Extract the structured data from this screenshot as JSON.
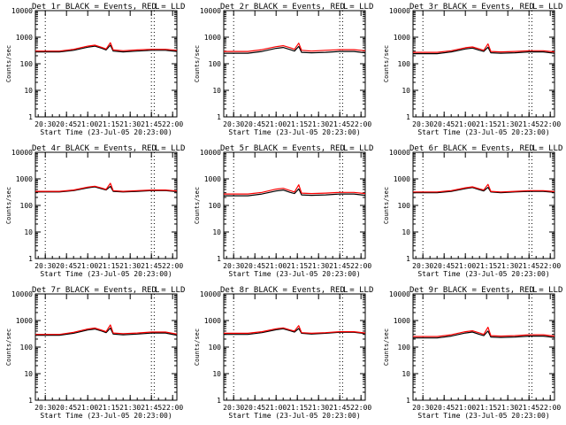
{
  "chart_data": [
    {
      "type": "line",
      "title": "Det 1r BLACK = Events, RED = LLD",
      "xlabel": "Start Time (23-Jul-05 20:23:00)",
      "ylabel": "Counts/sec",
      "marker": "L",
      "yscale": "log",
      "ylim": [
        1,
        10000
      ],
      "x_tick_labels": [
        "20:30",
        "20:45",
        "21:00",
        "21:15",
        "21:30",
        "21:45",
        "22:00"
      ],
      "y_tick_labels": [
        "1",
        "10",
        "100",
        "1000",
        "10000"
      ],
      "series": [
        {
          "color": "#000000",
          "x": [
            "20:23",
            "20:30",
            "20:40",
            "20:50",
            "21:00",
            "21:05",
            "21:10",
            "21:13",
            "21:16",
            "21:18",
            "21:25",
            "21:35",
            "21:45",
            "21:55",
            "22:03"
          ],
          "values": [
            280,
            280,
            280,
            320,
            420,
            460,
            380,
            330,
            500,
            300,
            280,
            300,
            320,
            320,
            290
          ]
        },
        {
          "color": "#ff0000",
          "x": [
            "20:23",
            "20:30",
            "20:40",
            "20:50",
            "21:00",
            "21:05",
            "21:10",
            "21:13",
            "21:16",
            "21:18",
            "21:25",
            "21:35",
            "21:45",
            "21:55",
            "22:03"
          ],
          "values": [
            300,
            300,
            300,
            350,
            460,
            500,
            410,
            360,
            620,
            330,
            310,
            330,
            350,
            350,
            320
          ]
        }
      ]
    },
    {
      "type": "line",
      "title": "Det 2r BLACK = Events, RED = LLD",
      "xlabel": "Start Time (23-Jul-05 20:23:00)",
      "ylabel": "Counts/sec",
      "marker": "L",
      "yscale": "log",
      "ylim": [
        1,
        10000
      ],
      "x_tick_labels": [
        "20:30",
        "20:45",
        "21:00",
        "21:15",
        "21:30",
        "21:45",
        "22:00"
      ],
      "y_tick_labels": [
        "1",
        "10",
        "100",
        "1000",
        "10000"
      ],
      "series": [
        {
          "color": "#000000",
          "x": [
            "20:23",
            "20:30",
            "20:40",
            "20:50",
            "21:00",
            "21:05",
            "21:10",
            "21:13",
            "21:16",
            "21:18",
            "21:25",
            "21:35",
            "21:45",
            "21:55",
            "22:03"
          ],
          "values": [
            250,
            250,
            250,
            290,
            380,
            410,
            340,
            300,
            450,
            270,
            260,
            270,
            290,
            290,
            260
          ]
        },
        {
          "color": "#ff0000",
          "x": [
            "20:23",
            "20:30",
            "20:40",
            "20:50",
            "21:00",
            "21:05",
            "21:10",
            "21:13",
            "21:16",
            "21:18",
            "21:25",
            "21:35",
            "21:45",
            "21:55",
            "22:03"
          ],
          "values": [
            290,
            290,
            290,
            340,
            440,
            480,
            400,
            350,
            600,
            320,
            300,
            320,
            340,
            340,
            310
          ]
        }
      ]
    },
    {
      "type": "line",
      "title": "Det 3r BLACK = Events, RED = LLD",
      "xlabel": "Start Time (23-Jul-05 20:23:00)",
      "ylabel": "Counts/sec",
      "marker": "L",
      "yscale": "log",
      "ylim": [
        1,
        10000
      ],
      "x_tick_labels": [
        "20:30",
        "20:45",
        "21:00",
        "21:15",
        "21:30",
        "21:45",
        "22:00"
      ],
      "y_tick_labels": [
        "1",
        "10",
        "100",
        "1000",
        "10000"
      ],
      "series": [
        {
          "color": "#000000",
          "x": [
            "20:23",
            "20:30",
            "20:40",
            "20:50",
            "21:00",
            "21:05",
            "21:10",
            "21:13",
            "21:16",
            "21:18",
            "21:25",
            "21:35",
            "21:45",
            "21:55",
            "22:03"
          ],
          "values": [
            240,
            240,
            240,
            280,
            360,
            390,
            320,
            290,
            420,
            260,
            250,
            260,
            280,
            280,
            250
          ]
        },
        {
          "color": "#ff0000",
          "x": [
            "20:23",
            "20:30",
            "20:40",
            "20:50",
            "21:00",
            "21:05",
            "21:10",
            "21:13",
            "21:16",
            "21:18",
            "21:25",
            "21:35",
            "21:45",
            "21:55",
            "22:03"
          ],
          "values": [
            270,
            270,
            270,
            310,
            400,
            430,
            360,
            320,
            560,
            290,
            280,
            290,
            310,
            310,
            280
          ]
        }
      ]
    },
    {
      "type": "line",
      "title": "Det 4r BLACK = Events, RED = LLD",
      "xlabel": "Start Time (23-Jul-05 20:23:00)",
      "ylabel": "Counts/sec",
      "marker": "L",
      "yscale": "log",
      "ylim": [
        1,
        10000
      ],
      "x_tick_labels": [
        "20:30",
        "20:45",
        "21:00",
        "21:15",
        "21:30",
        "21:45",
        "22:00"
      ],
      "y_tick_labels": [
        "1",
        "10",
        "100",
        "1000",
        "10000"
      ],
      "series": [
        {
          "color": "#000000",
          "x": [
            "20:23",
            "20:30",
            "20:40",
            "20:50",
            "21:00",
            "21:05",
            "21:10",
            "21:13",
            "21:16",
            "21:18",
            "21:25",
            "21:35",
            "21:45",
            "21:55",
            "22:03"
          ],
          "values": [
            320,
            320,
            320,
            360,
            460,
            500,
            420,
            380,
            520,
            340,
            320,
            340,
            360,
            360,
            330
          ]
        },
        {
          "color": "#ff0000",
          "x": [
            "20:23",
            "20:30",
            "20:40",
            "20:50",
            "21:00",
            "21:05",
            "21:10",
            "21:13",
            "21:16",
            "21:18",
            "21:25",
            "21:35",
            "21:45",
            "21:55",
            "22:03"
          ],
          "values": [
            340,
            340,
            340,
            380,
            490,
            530,
            450,
            400,
            680,
            360,
            340,
            360,
            380,
            380,
            350
          ]
        }
      ]
    },
    {
      "type": "line",
      "title": "Det 5r BLACK = Events, RED = LLD",
      "xlabel": "Start Time (23-Jul-05 20:23:00)",
      "ylabel": "Counts/sec",
      "marker": "L",
      "yscale": "log",
      "ylim": [
        1,
        10000
      ],
      "x_tick_labels": [
        "20:30",
        "20:45",
        "21:00",
        "21:15",
        "21:30",
        "21:45",
        "22:00"
      ],
      "y_tick_labels": [
        "1",
        "10",
        "100",
        "1000",
        "10000"
      ],
      "series": [
        {
          "color": "#000000",
          "x": [
            "20:23",
            "20:30",
            "20:40",
            "20:50",
            "21:00",
            "21:05",
            "21:10",
            "21:13",
            "21:16",
            "21:18",
            "21:25",
            "21:35",
            "21:45",
            "21:55",
            "22:03"
          ],
          "values": [
            230,
            230,
            230,
            270,
            350,
            380,
            310,
            280,
            420,
            250,
            240,
            250,
            270,
            270,
            240
          ]
        },
        {
          "color": "#ff0000",
          "x": [
            "20:23",
            "20:30",
            "20:40",
            "20:50",
            "21:00",
            "21:05",
            "21:10",
            "21:13",
            "21:16",
            "21:18",
            "21:25",
            "21:35",
            "21:45",
            "21:55",
            "22:03"
          ],
          "values": [
            270,
            270,
            270,
            310,
            410,
            440,
            360,
            320,
            600,
            290,
            280,
            290,
            310,
            310,
            280
          ]
        }
      ]
    },
    {
      "type": "line",
      "title": "Det 6r BLACK = Events, RED = LLD",
      "xlabel": "Start Time (23-Jul-05 20:23:00)",
      "ylabel": "Counts/sec",
      "marker": "L",
      "yscale": "log",
      "ylim": [
        1,
        10000
      ],
      "x_tick_labels": [
        "20:30",
        "20:45",
        "21:00",
        "21:15",
        "21:30",
        "21:45",
        "22:00"
      ],
      "y_tick_labels": [
        "1",
        "10",
        "100",
        "1000",
        "10000"
      ],
      "series": [
        {
          "color": "#000000",
          "x": [
            "20:23",
            "20:30",
            "20:40",
            "20:50",
            "21:00",
            "21:05",
            "21:10",
            "21:13",
            "21:16",
            "21:18",
            "21:25",
            "21:35",
            "21:45",
            "21:55",
            "22:03"
          ],
          "values": [
            300,
            300,
            300,
            340,
            430,
            470,
            390,
            350,
            480,
            320,
            300,
            320,
            340,
            340,
            310
          ]
        },
        {
          "color": "#ff0000",
          "x": [
            "20:23",
            "20:30",
            "20:40",
            "20:50",
            "21:00",
            "21:05",
            "21:10",
            "21:13",
            "21:16",
            "21:18",
            "21:25",
            "21:35",
            "21:45",
            "21:55",
            "22:03"
          ],
          "values": [
            320,
            320,
            320,
            360,
            460,
            500,
            420,
            380,
            620,
            340,
            320,
            340,
            360,
            360,
            330
          ]
        }
      ]
    },
    {
      "type": "line",
      "title": "Det 7r BLACK = Events, RED = LLD",
      "xlabel": "Start Time (23-Jul-05 20:23:00)",
      "ylabel": "Counts/sec",
      "marker": "L",
      "yscale": "log",
      "ylim": [
        1,
        10000
      ],
      "x_tick_labels": [
        "20:30",
        "20:45",
        "21:00",
        "21:15",
        "21:30",
        "21:45",
        "22:00"
      ],
      "y_tick_labels": [
        "1",
        "10",
        "100",
        "1000",
        "10000"
      ],
      "series": [
        {
          "color": "#000000",
          "x": [
            "20:23",
            "20:30",
            "20:40",
            "20:50",
            "21:00",
            "21:05",
            "21:10",
            "21:13",
            "21:16",
            "21:18",
            "21:25",
            "21:35",
            "21:45",
            "21:55",
            "22:03"
          ],
          "values": [
            280,
            280,
            280,
            330,
            440,
            480,
            400,
            350,
            520,
            310,
            290,
            310,
            340,
            340,
            280
          ]
        },
        {
          "color": "#ff0000",
          "x": [
            "20:23",
            "20:30",
            "20:40",
            "20:50",
            "21:00",
            "21:05",
            "21:10",
            "21:13",
            "21:16",
            "21:18",
            "21:25",
            "21:35",
            "21:45",
            "21:55",
            "22:03"
          ],
          "values": [
            300,
            300,
            300,
            360,
            480,
            520,
            430,
            380,
            680,
            340,
            320,
            340,
            370,
            370,
            310
          ]
        }
      ]
    },
    {
      "type": "line",
      "title": "Det 8r BLACK = Events, RED = LLD",
      "xlabel": "Start Time (23-Jul-05 20:23:00)",
      "ylabel": "Counts/sec",
      "marker": "L",
      "yscale": "log",
      "ylim": [
        1,
        10000
      ],
      "x_tick_labels": [
        "20:30",
        "20:45",
        "21:00",
        "21:15",
        "21:30",
        "21:45",
        "22:00"
      ],
      "y_tick_labels": [
        "1",
        "10",
        "100",
        "1000",
        "10000"
      ],
      "series": [
        {
          "color": "#000000",
          "x": [
            "20:23",
            "20:30",
            "20:40",
            "20:50",
            "21:00",
            "21:05",
            "21:10",
            "21:13",
            "21:16",
            "21:18",
            "21:25",
            "21:35",
            "21:45",
            "21:55",
            "22:03"
          ],
          "values": [
            300,
            300,
            300,
            350,
            450,
            490,
            410,
            370,
            500,
            330,
            310,
            330,
            360,
            360,
            320
          ]
        },
        {
          "color": "#ff0000",
          "x": [
            "20:23",
            "20:30",
            "20:40",
            "20:50",
            "21:00",
            "21:05",
            "21:10",
            "21:13",
            "21:16",
            "21:18",
            "21:25",
            "21:35",
            "21:45",
            "21:55",
            "22:03"
          ],
          "values": [
            330,
            330,
            330,
            380,
            490,
            530,
            440,
            400,
            640,
            350,
            330,
            350,
            380,
            380,
            340
          ]
        }
      ]
    },
    {
      "type": "line",
      "title": "Det 9r BLACK = Events, RED = LLD",
      "xlabel": "Start Time (23-Jul-05 20:23:00)",
      "ylabel": "Counts/sec",
      "marker": "L",
      "yscale": "log",
      "ylim": [
        1,
        10000
      ],
      "x_tick_labels": [
        "20:30",
        "20:45",
        "21:00",
        "21:15",
        "21:30",
        "21:45",
        "22:00"
      ],
      "y_tick_labels": [
        "1",
        "10",
        "100",
        "1000",
        "10000"
      ],
      "series": [
        {
          "color": "#000000",
          "x": [
            "20:23",
            "20:30",
            "20:40",
            "20:50",
            "21:00",
            "21:05",
            "21:10",
            "21:13",
            "21:16",
            "21:18",
            "21:25",
            "21:35",
            "21:45",
            "21:55",
            "22:03"
          ],
          "values": [
            220,
            220,
            220,
            260,
            340,
            370,
            300,
            270,
            400,
            240,
            230,
            240,
            260,
            260,
            230
          ]
        },
        {
          "color": "#ff0000",
          "x": [
            "20:23",
            "20:30",
            "20:40",
            "20:50",
            "21:00",
            "21:05",
            "21:10",
            "21:13",
            "21:16",
            "21:18",
            "21:25",
            "21:35",
            "21:45",
            "21:55",
            "22:03"
          ],
          "values": [
            250,
            250,
            250,
            290,
            380,
            410,
            340,
            300,
            560,
            270,
            260,
            270,
            290,
            290,
            260
          ]
        }
      ]
    }
  ]
}
